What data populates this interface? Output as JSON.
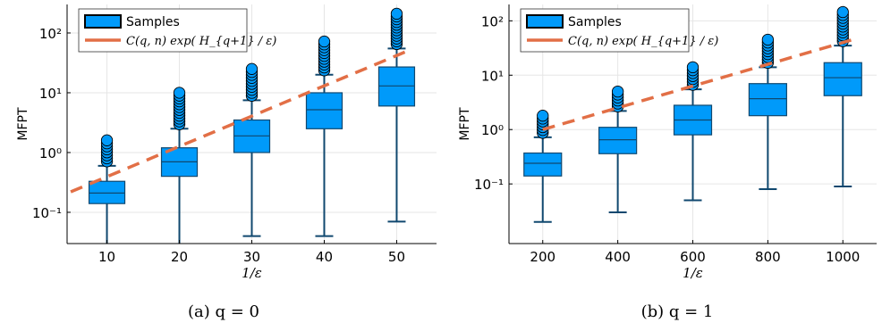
{
  "colors": {
    "box_fill": "#009AFA",
    "box_stroke": "#10486F",
    "whisker": "#10486F",
    "fit_line": "#E26F46",
    "grid": "#E6E6E6",
    "axis": "#000000"
  },
  "chart_data": [
    {
      "type": "box",
      "caption": "(a)  q = 0",
      "xlabel": "1/ε",
      "ylabel": "MFPT",
      "yscale": "log",
      "xlim": [
        4.5,
        55.5
      ],
      "ylim": [
        0.03,
        300
      ],
      "x_ticks": [
        10,
        20,
        30,
        40,
        50
      ],
      "x_tick_labels": [
        "10",
        "20",
        "30",
        "40",
        "50"
      ],
      "y_ticks": [
        0.1,
        1,
        10,
        100
      ],
      "y_tick_labels": [
        "10⁻¹",
        "10⁰",
        "10¹",
        "10²"
      ],
      "legend": {
        "position": "top-left",
        "entries": [
          "Samples",
          "C(q, n) exp( H_{q+1} / ε)"
        ]
      },
      "boxes": [
        {
          "x": 10,
          "min": 0.02,
          "q1": 0.14,
          "median": 0.21,
          "q3": 0.33,
          "max": 0.6,
          "outlier_max": 1.6
        },
        {
          "x": 20,
          "min": 0.02,
          "q1": 0.4,
          "median": 0.7,
          "q3": 1.2,
          "max": 2.5,
          "outlier_max": 10
        },
        {
          "x": 30,
          "min": 0.04,
          "q1": 1.0,
          "median": 1.9,
          "q3": 3.5,
          "max": 7.5,
          "outlier_max": 25
        },
        {
          "x": 40,
          "min": 0.04,
          "q1": 2.5,
          "median": 5.2,
          "q3": 10,
          "max": 20,
          "outlier_max": 72
        },
        {
          "x": 50,
          "min": 0.07,
          "q1": 6,
          "median": 13,
          "q3": 27,
          "max": 55,
          "outlier_max": 210
        }
      ],
      "fit_line": {
        "x": [
          5,
          52
        ],
        "y": [
          0.22,
          53
        ]
      }
    },
    {
      "type": "box",
      "caption": "(b)  q = 1",
      "xlabel": "1/ε",
      "ylabel": "MFPT",
      "yscale": "log",
      "xlim": [
        110,
        1090
      ],
      "ylim": [
        0.008,
        200
      ],
      "x_ticks": [
        200,
        400,
        600,
        800,
        1000
      ],
      "x_tick_labels": [
        "200",
        "400",
        "600",
        "800",
        "1000"
      ],
      "y_ticks": [
        0.1,
        1,
        10,
        100
      ],
      "y_tick_labels": [
        "10⁻¹",
        "10⁰",
        "10¹",
        "10²"
      ],
      "legend": {
        "position": "top-left",
        "entries": [
          "Samples",
          "C(q, n) exp( H_{q+1} / ε)"
        ]
      },
      "boxes": [
        {
          "x": 200,
          "min": 0.02,
          "q1": 0.14,
          "median": 0.24,
          "q3": 0.37,
          "max": 0.72,
          "outlier_max": 1.8
        },
        {
          "x": 400,
          "min": 0.03,
          "q1": 0.36,
          "median": 0.65,
          "q3": 1.1,
          "max": 2.2,
          "outlier_max": 5
        },
        {
          "x": 600,
          "min": 0.05,
          "q1": 0.8,
          "median": 1.5,
          "q3": 2.8,
          "max": 5.5,
          "outlier_max": 14
        },
        {
          "x": 800,
          "min": 0.08,
          "q1": 1.8,
          "median": 3.7,
          "q3": 7,
          "max": 14,
          "outlier_max": 45
        },
        {
          "x": 1000,
          "min": 0.09,
          "q1": 4.2,
          "median": 9,
          "q3": 17,
          "max": 35,
          "outlier_max": 145
        }
      ],
      "fit_line": {
        "x": [
          200,
          1040
        ],
        "y": [
          1.0,
          48
        ]
      }
    }
  ]
}
